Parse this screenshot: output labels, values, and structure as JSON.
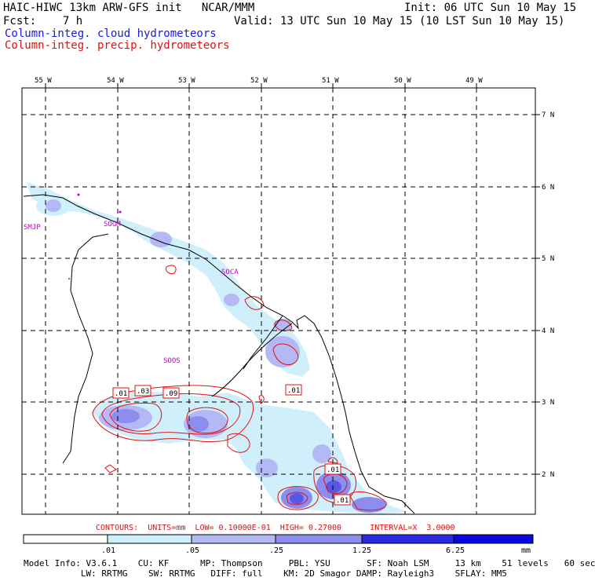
{
  "header": {
    "line1_left": "HAIC-HIWC 13km ARW-GFS init   NCAR/MMM",
    "line1_right": "Init: 06 UTC Sun 10 May 15",
    "line2_left": "Fcst:    7 h",
    "line2_right": "Valid: 13 UTC Sun 10 May 15 (10 LST Sun 10 May 15)",
    "line3": "Column-integ. cloud hydrometeors",
    "line4": "Column-integ. precip. hydrometeors"
  },
  "axes": {
    "lon_labels": [
      "55 W",
      "54 W",
      "53 W",
      "52 W",
      "51 W",
      "50 W",
      "49 W"
    ],
    "lat_labels": [
      "7 N",
      "6 N",
      "5 N",
      "4 N",
      "3 N",
      "2 N"
    ]
  },
  "stations": [
    "SMJP",
    "SOGM",
    "SOCA",
    "SOOS"
  ],
  "contour_labels": [
    ".01",
    ".03",
    ".09",
    ".01",
    ".01",
    ".01"
  ],
  "contour_note": "CONTOURS:  UNITS=mm  LOW= 0.10000E-01  HIGH= 0.27000      INTERVAL=X  3.0000",
  "colorbar": {
    "ticks": [
      ".01",
      ".05",
      ".25",
      "1.25",
      "6.25",
      "mm"
    ],
    "colors": [
      "#ffffff",
      "#cfeffb",
      "#b4b8f4",
      "#8d8df0",
      "#5757e8",
      "#2a2ae0",
      "#0808dc"
    ]
  },
  "footer": {
    "line1": "Model Info: V3.6.1    CU: KF      MP: Thompson     PBL: YSU       SF: Noah LSM     13 km    51 levels   60 sec",
    "line2": "           LW: RRTMG    SW: RRTMG   DIFF: full    KM: 2D Smagor DAMP: Rayleigh3    SFLAY: MM5"
  }
}
